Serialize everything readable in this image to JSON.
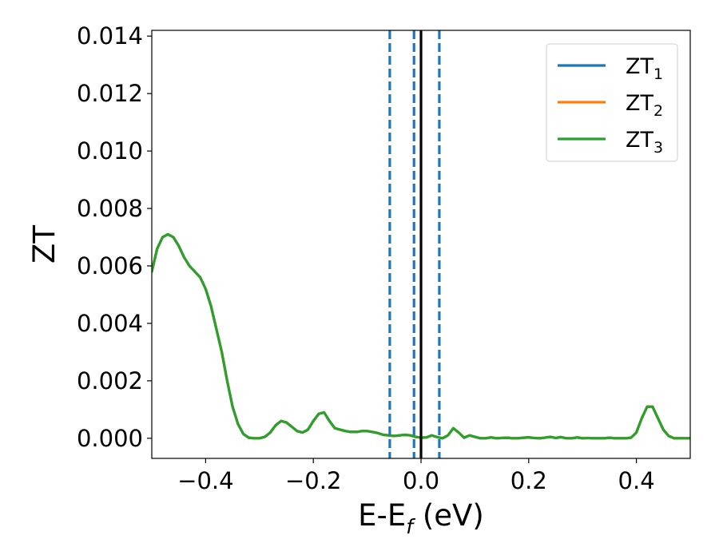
{
  "chart_data": {
    "type": "line",
    "xlabel": "E-E",
    "xlabel_sub": "f",
    "xlabel_unit": " (eV)",
    "ylabel": "ZT",
    "xlim": [
      -0.5,
      0.5
    ],
    "ylim": [
      -0.0007,
      0.0142
    ],
    "x_ticks": [
      -0.4,
      -0.2,
      0.0,
      0.2,
      0.4
    ],
    "x_tick_labels": [
      "−0.4",
      "−0.2",
      "0.0",
      "0.2",
      "0.4"
    ],
    "y_ticks": [
      0.0,
      0.002,
      0.004,
      0.006,
      0.008,
      0.01,
      0.012,
      0.014
    ],
    "y_tick_labels": [
      "0.000",
      "0.002",
      "0.004",
      "0.006",
      "0.008",
      "0.010",
      "0.012",
      "0.014"
    ],
    "grid": false,
    "legend_position": "top-right",
    "fermi_line": {
      "x": 0.0,
      "color": "#000000"
    },
    "dashed_lines": {
      "x": [
        -0.058,
        -0.013,
        0.034
      ],
      "color": "#1f77b4"
    },
    "series": [
      {
        "name": "ZT",
        "sub": "1",
        "color": "#1f77b4",
        "x": [
          -0.5,
          -0.49,
          -0.48,
          -0.47,
          -0.46,
          -0.45,
          -0.44,
          -0.43,
          -0.42,
          -0.41,
          -0.4,
          -0.39,
          -0.38,
          -0.37,
          -0.36,
          -0.35,
          -0.34,
          -0.33,
          -0.32,
          -0.31,
          -0.3,
          -0.29,
          -0.28,
          -0.27,
          -0.26,
          -0.25,
          -0.24,
          -0.23,
          -0.22,
          -0.21,
          -0.2,
          -0.19,
          -0.18,
          -0.17,
          -0.16,
          -0.15,
          -0.14,
          -0.13,
          -0.12,
          -0.11,
          -0.1,
          -0.09,
          -0.08,
          -0.07,
          -0.06,
          -0.05,
          -0.04,
          -0.03,
          -0.02,
          -0.01,
          0.0,
          0.01,
          0.02,
          0.03,
          0.04,
          0.05,
          0.06,
          0.07,
          0.08,
          0.09,
          0.1,
          0.11,
          0.12,
          0.13,
          0.14,
          0.15,
          0.16,
          0.17,
          0.18,
          0.19,
          0.2,
          0.21,
          0.22,
          0.23,
          0.24,
          0.25,
          0.26,
          0.27,
          0.28,
          0.29,
          0.3,
          0.31,
          0.32,
          0.33,
          0.34,
          0.35,
          0.36,
          0.37,
          0.38,
          0.39,
          0.4,
          0.41,
          0.42,
          0.43,
          0.44,
          0.45,
          0.46,
          0.47,
          0.48,
          0.49,
          0.5
        ],
        "y": [
          0.0058,
          0.0066,
          0.007,
          0.0071,
          0.007,
          0.0067,
          0.0063,
          0.006,
          0.0058,
          0.0056,
          0.0052,
          0.0046,
          0.0038,
          0.003,
          0.002,
          0.0011,
          0.0005,
          0.00015,
          2e-05,
          0.0,
          0.0,
          5e-05,
          0.0002,
          0.00045,
          0.0006,
          0.00055,
          0.0004,
          0.00025,
          0.0002,
          0.0003,
          0.0006,
          0.00085,
          0.0009,
          0.0006,
          0.00035,
          0.0003,
          0.00025,
          0.00022,
          0.00022,
          0.00025,
          0.00025,
          0.00022,
          0.00018,
          0.00012,
          0.0001,
          8e-05,
          0.0001,
          0.00012,
          0.0001,
          5e-05,
          2e-05,
          3e-05,
          0.0001,
          4e-05,
          0.0,
          0.0001,
          0.00035,
          0.0002,
          2e-05,
          0.0001,
          5e-05,
          0.0,
          0.0,
          3e-05,
          0.0,
          1e-05,
          2e-05,
          0.0,
          0.0,
          2e-05,
          3e-05,
          1e-05,
          0.0,
          2e-05,
          5e-05,
          1e-05,
          4e-05,
          0.0,
          0.0,
          3e-05,
          0.0,
          1e-05,
          0.0,
          0.0,
          0.0,
          2e-05,
          0.0,
          0.0,
          0.0,
          2e-05,
          0.0002,
          0.0007,
          0.0011,
          0.0011,
          0.0007,
          0.0003,
          8e-05,
          0.0,
          0.0,
          0.0,
          0.0
        ]
      },
      {
        "name": "ZT",
        "sub": "2",
        "color": "#ff7f0e",
        "x": [
          -0.5,
          -0.49,
          -0.48,
          -0.47,
          -0.46,
          -0.45,
          -0.44,
          -0.43,
          -0.42,
          -0.41,
          -0.4,
          -0.39,
          -0.38,
          -0.37,
          -0.36,
          -0.35,
          -0.34,
          -0.33,
          -0.32,
          -0.31,
          -0.3,
          -0.29,
          -0.28,
          -0.27,
          -0.26,
          -0.25,
          -0.24,
          -0.23,
          -0.22,
          -0.21,
          -0.2,
          -0.19,
          -0.18,
          -0.17,
          -0.16,
          -0.15,
          -0.14,
          -0.13,
          -0.12,
          -0.11,
          -0.1,
          -0.09,
          -0.08,
          -0.07,
          -0.06,
          -0.05,
          -0.04,
          -0.03,
          -0.02,
          -0.01,
          0.0,
          0.01,
          0.02,
          0.03,
          0.04,
          0.05,
          0.06,
          0.07,
          0.08,
          0.09,
          0.1,
          0.11,
          0.12,
          0.13,
          0.14,
          0.15,
          0.16,
          0.17,
          0.18,
          0.19,
          0.2,
          0.21,
          0.22,
          0.23,
          0.24,
          0.25,
          0.26,
          0.27,
          0.28,
          0.29,
          0.3,
          0.31,
          0.32,
          0.33,
          0.34,
          0.35,
          0.36,
          0.37,
          0.38,
          0.39,
          0.4,
          0.41,
          0.42,
          0.43,
          0.44,
          0.45,
          0.46,
          0.47,
          0.48,
          0.49,
          0.5
        ],
        "y": [
          0.0058,
          0.0066,
          0.007,
          0.0071,
          0.007,
          0.0067,
          0.0063,
          0.006,
          0.0058,
          0.0056,
          0.0052,
          0.0046,
          0.0038,
          0.003,
          0.002,
          0.0011,
          0.0005,
          0.00015,
          2e-05,
          0.0,
          0.0,
          5e-05,
          0.0002,
          0.00045,
          0.0006,
          0.00055,
          0.0004,
          0.00025,
          0.0002,
          0.0003,
          0.0006,
          0.00085,
          0.0009,
          0.0006,
          0.00035,
          0.0003,
          0.00025,
          0.00022,
          0.00022,
          0.00025,
          0.00025,
          0.00022,
          0.00018,
          0.00012,
          0.0001,
          8e-05,
          0.0001,
          0.00012,
          0.0001,
          5e-05,
          2e-05,
          3e-05,
          0.0001,
          4e-05,
          0.0,
          0.0001,
          0.00035,
          0.0002,
          2e-05,
          0.0001,
          5e-05,
          0.0,
          0.0,
          3e-05,
          0.0,
          1e-05,
          2e-05,
          0.0,
          0.0,
          2e-05,
          3e-05,
          1e-05,
          0.0,
          2e-05,
          5e-05,
          1e-05,
          4e-05,
          0.0,
          0.0,
          3e-05,
          0.0,
          1e-05,
          0.0,
          0.0,
          0.0,
          2e-05,
          0.0,
          0.0,
          0.0,
          2e-05,
          0.0002,
          0.0007,
          0.0011,
          0.0011,
          0.0007,
          0.0003,
          8e-05,
          0.0,
          0.0,
          0.0,
          0.0
        ]
      },
      {
        "name": "ZT",
        "sub": "3",
        "color": "#2ca02c",
        "x": [
          -0.5,
          -0.49,
          -0.48,
          -0.47,
          -0.46,
          -0.45,
          -0.44,
          -0.43,
          -0.42,
          -0.41,
          -0.4,
          -0.39,
          -0.38,
          -0.37,
          -0.36,
          -0.35,
          -0.34,
          -0.33,
          -0.32,
          -0.31,
          -0.3,
          -0.29,
          -0.28,
          -0.27,
          -0.26,
          -0.25,
          -0.24,
          -0.23,
          -0.22,
          -0.21,
          -0.2,
          -0.19,
          -0.18,
          -0.17,
          -0.16,
          -0.15,
          -0.14,
          -0.13,
          -0.12,
          -0.11,
          -0.1,
          -0.09,
          -0.08,
          -0.07,
          -0.06,
          -0.05,
          -0.04,
          -0.03,
          -0.02,
          -0.01,
          0.0,
          0.01,
          0.02,
          0.03,
          0.04,
          0.05,
          0.06,
          0.07,
          0.08,
          0.09,
          0.1,
          0.11,
          0.12,
          0.13,
          0.14,
          0.15,
          0.16,
          0.17,
          0.18,
          0.19,
          0.2,
          0.21,
          0.22,
          0.23,
          0.24,
          0.25,
          0.26,
          0.27,
          0.28,
          0.29,
          0.3,
          0.31,
          0.32,
          0.33,
          0.34,
          0.35,
          0.36,
          0.37,
          0.38,
          0.39,
          0.4,
          0.41,
          0.42,
          0.43,
          0.44,
          0.45,
          0.46,
          0.47,
          0.48,
          0.49,
          0.5
        ],
        "y": [
          0.0058,
          0.0066,
          0.007,
          0.0071,
          0.007,
          0.0067,
          0.0063,
          0.006,
          0.0058,
          0.0056,
          0.0052,
          0.0046,
          0.0038,
          0.003,
          0.002,
          0.0011,
          0.0005,
          0.00015,
          2e-05,
          0.0,
          0.0,
          5e-05,
          0.0002,
          0.00045,
          0.0006,
          0.00055,
          0.0004,
          0.00025,
          0.0002,
          0.0003,
          0.0006,
          0.00085,
          0.0009,
          0.0006,
          0.00035,
          0.0003,
          0.00025,
          0.00022,
          0.00022,
          0.00025,
          0.00025,
          0.00022,
          0.00018,
          0.00012,
          0.0001,
          8e-05,
          0.0001,
          0.00012,
          0.0001,
          5e-05,
          2e-05,
          3e-05,
          0.0001,
          4e-05,
          0.0,
          0.0001,
          0.00035,
          0.0002,
          2e-05,
          0.0001,
          5e-05,
          0.0,
          0.0,
          3e-05,
          0.0,
          1e-05,
          2e-05,
          0.0,
          0.0,
          2e-05,
          3e-05,
          1e-05,
          0.0,
          2e-05,
          5e-05,
          1e-05,
          4e-05,
          0.0,
          0.0,
          3e-05,
          0.0,
          1e-05,
          0.0,
          0.0,
          0.0,
          2e-05,
          0.0,
          0.0,
          0.0,
          2e-05,
          0.0002,
          0.0007,
          0.0011,
          0.0011,
          0.0007,
          0.0003,
          8e-05,
          0.0,
          0.0,
          0.0,
          0.0
        ]
      }
    ]
  }
}
